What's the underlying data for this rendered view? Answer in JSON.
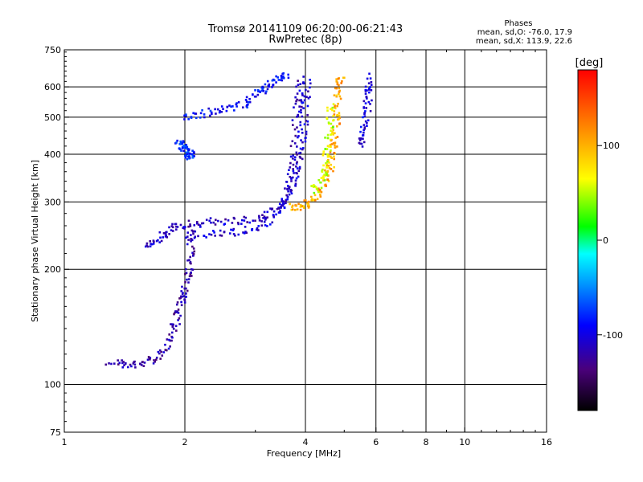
{
  "chart_data": {
    "type": "scatter",
    "title": "Tromsø 20141109 06:20:00-06:21:43",
    "subtitle": "RwPretec (8p)",
    "xlabel": "Frequency [MHz]",
    "ylabel": "Stationary phase Virtual Height [km]",
    "x_scale": "log",
    "y_scale": "log",
    "xlim": [
      1,
      16
    ],
    "ylim": [
      75,
      750
    ],
    "x_ticks": [
      "1",
      "2",
      "4",
      "6",
      "8",
      "10",
      "16"
    ],
    "y_ticks": [
      "75",
      "100",
      "200",
      "300",
      "400",
      "500",
      "600",
      "750"
    ],
    "x_gridlines": [
      2,
      4,
      6,
      8,
      10
    ],
    "y_gridlines": [
      100,
      200,
      300,
      400,
      500,
      600
    ],
    "grid": true,
    "phase_box": {
      "title": "Phases",
      "line1": "mean, sd,O: -76.0, 17.9",
      "line2": "mean, sd,X: 113.9, 22.6"
    },
    "colorbar": {
      "label": "[deg]",
      "range": [
        -180,
        180
      ],
      "ticks": [
        "100",
        "0",
        "-100"
      ],
      "colormap": [
        "#000000",
        "#4a007a",
        "#0000ff",
        "#00a0ff",
        "#00ffff",
        "#00ff00",
        "#ffff00",
        "#ff8000",
        "#ff0000"
      ]
    },
    "traces": [
      {
        "name": "",
        "phase": -120,
        "points": [
          [
            1.3,
            115
          ],
          [
            1.45,
            112
          ],
          [
            1.6,
            114
          ],
          [
            1.75,
            120
          ],
          [
            1.85,
            135
          ],
          [
            1.92,
            150
          ],
          [
            1.96,
            165
          ],
          [
            2.0,
            180
          ],
          [
            2.05,
            200
          ],
          [
            2.07,
            230
          ],
          [
            2.08,
            255
          ]
        ]
      },
      {
        "name": "",
        "phase": -110,
        "points": [
          [
            1.62,
            232
          ],
          [
            1.72,
            240
          ],
          [
            1.85,
            255
          ],
          [
            2.0,
            262
          ],
          [
            2.3,
            266
          ],
          [
            2.7,
            268
          ],
          [
            3.1,
            272
          ],
          [
            3.4,
            285
          ],
          [
            3.6,
            310
          ],
          [
            3.7,
            350
          ],
          [
            3.75,
            400
          ],
          [
            3.8,
            480
          ],
          [
            3.85,
            560
          ],
          [
            3.9,
            630
          ]
        ]
      },
      {
        "name": "",
        "phase": -105,
        "points": [
          [
            2.0,
            245
          ],
          [
            2.4,
            248
          ],
          [
            2.8,
            252
          ],
          [
            3.2,
            262
          ],
          [
            3.5,
            290
          ],
          [
            3.7,
            330
          ],
          [
            3.85,
            380
          ],
          [
            3.95,
            450
          ],
          [
            4.0,
            540
          ],
          [
            4.05,
            620
          ]
        ]
      },
      {
        "name": "",
        "phase": -90,
        "points": [
          [
            2.0,
            500
          ],
          [
            2.2,
            510
          ],
          [
            2.5,
            520
          ],
          [
            2.8,
            540
          ],
          [
            3.0,
            570
          ],
          [
            3.2,
            600
          ],
          [
            3.4,
            630
          ],
          [
            3.6,
            650
          ]
        ]
      },
      {
        "name": "",
        "phase": -80,
        "points": [
          [
            1.92,
            430
          ],
          [
            1.97,
            420
          ],
          [
            2.0,
            405
          ],
          [
            2.05,
            395
          ],
          [
            2.1,
            400
          ]
        ]
      },
      {
        "name": "",
        "phase": 120,
        "points": [
          [
            3.7,
            290
          ],
          [
            3.9,
            293
          ],
          [
            4.1,
            300
          ],
          [
            4.3,
            315
          ],
          [
            4.5,
            340
          ],
          [
            4.6,
            370
          ],
          [
            4.7,
            410
          ],
          [
            4.75,
            460
          ],
          [
            4.8,
            520
          ],
          [
            4.85,
            590
          ],
          [
            4.9,
            640
          ]
        ]
      },
      {
        "name": "",
        "phase": 80,
        "points": [
          [
            4.2,
            320
          ],
          [
            4.4,
            340
          ],
          [
            4.5,
            380
          ],
          [
            4.55,
            420
          ],
          [
            4.6,
            480
          ],
          [
            4.62,
            540
          ]
        ]
      },
      {
        "name": "",
        "phase": -100,
        "points": [
          [
            5.5,
            420
          ],
          [
            5.6,
            460
          ],
          [
            5.7,
            520
          ],
          [
            5.75,
            580
          ],
          [
            5.8,
            640
          ]
        ]
      }
    ]
  }
}
